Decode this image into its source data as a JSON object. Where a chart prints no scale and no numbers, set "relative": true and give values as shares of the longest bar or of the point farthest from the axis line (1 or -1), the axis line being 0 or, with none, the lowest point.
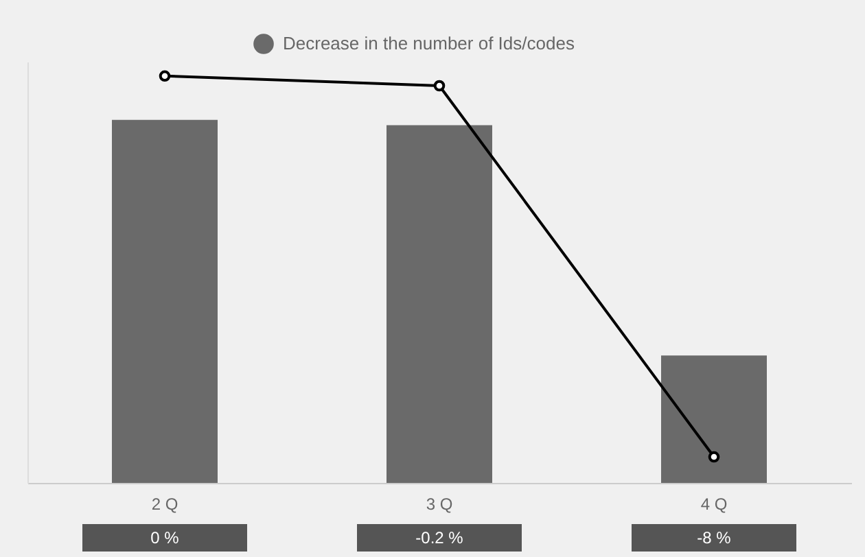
{
  "chart_data": {
    "type": "bar",
    "relative": true,
    "categories": [
      "2 Q",
      "3 Q",
      "4 Q"
    ],
    "legend": "top",
    "series": [
      {
        "name": "Decrease in the number of Ids/codes",
        "color": "#6a6a6a",
        "values": [
          0.892,
          0.879,
          0.313
        ]
      },
      {
        "type": "line",
        "color": "#000000",
        "marker": "circle",
        "line_style": "solid",
        "values": [
          1,
          0.976,
          0.064
        ]
      }
    ],
    "annotations": [
      "0 %",
      "-0.2 %",
      "-8 %"
    ]
  }
}
